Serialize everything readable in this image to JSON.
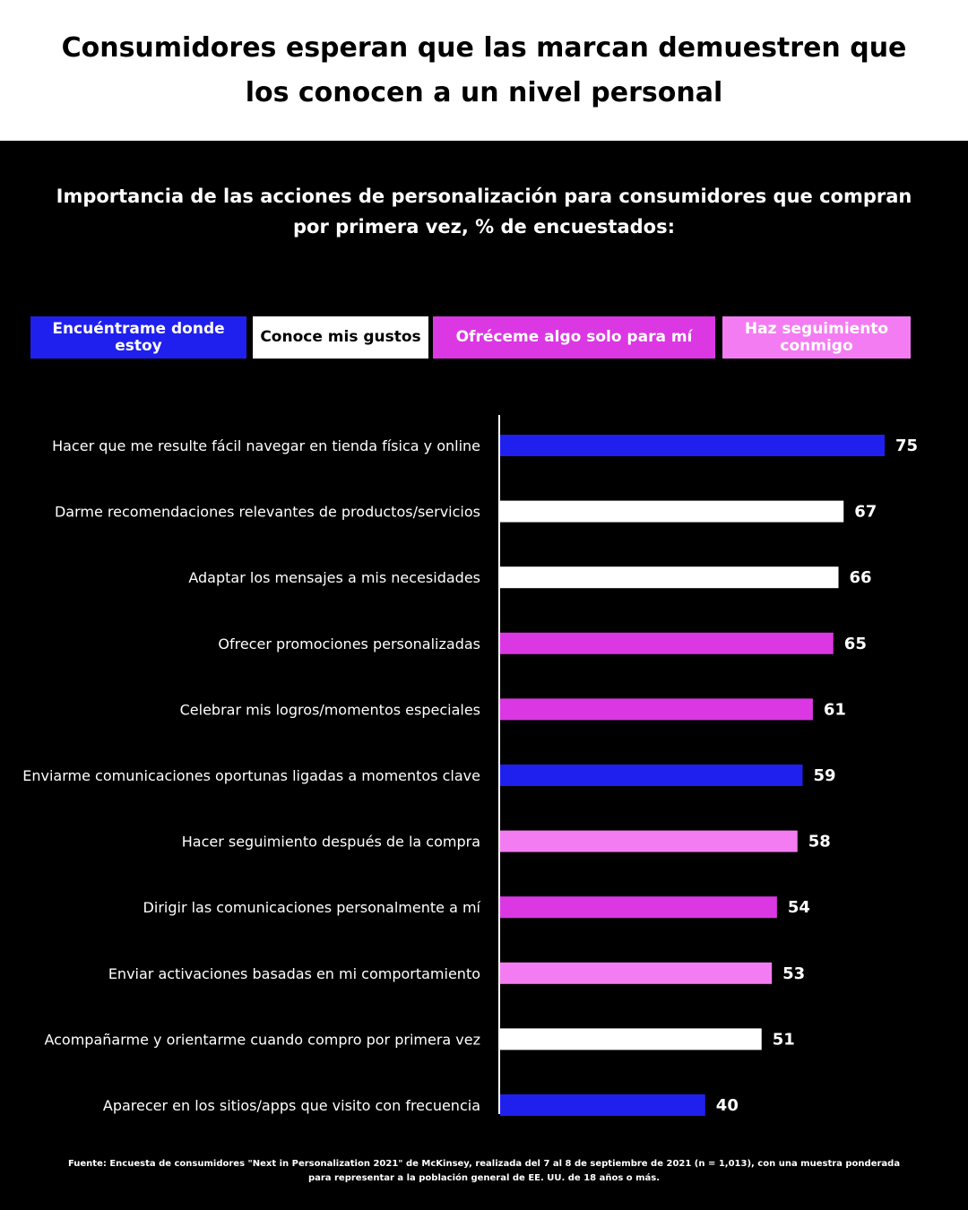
{
  "page": {
    "title": "Consumidores esperan que las marcan demuestren que los conocen a un nivel personal",
    "source": "Fuente: Encuesta de consumidores \"Next in Personalization 2021\" de McKinsey, realizada del 7 al 8 de septiembre de 2021 (n = 1,013), con una muestra ponderada para representar a la población general de EE. UU. de 18 años o más."
  },
  "colors": {
    "blue": "#2020ee",
    "white": "#ffffff",
    "magenta": "#db37e3",
    "pink": "#f47cf2",
    "background": "#000000"
  },
  "chart_data": {
    "type": "bar",
    "orientation": "horizontal",
    "title": "Importancia de las acciones de personalización para consumidores que compran por primera vez, % de encuestados:",
    "legend_position": "top",
    "legend": [
      {
        "label": "Encuéntrame donde estoy",
        "color": "#2020ee",
        "text_color": "#ffffff"
      },
      {
        "label": "Conoce mis gustos",
        "color": "#ffffff",
        "text_color": "#000000"
      },
      {
        "label": "Ofréceme algo solo para mí",
        "color": "#db37e3",
        "text_color": "#ffffff"
      },
      {
        "label": "Haz seguimiento conmigo",
        "color": "#f47cf2",
        "text_color": "#ffffff"
      }
    ],
    "categories": [
      "Hacer que me resulte fácil navegar en tienda física y online",
      "Darme recomendaciones relevantes de productos/servicios",
      "Adaptar los mensajes a mis necesidades",
      "Ofrecer promociones personalizadas",
      "Celebrar mis logros/momentos especiales",
      "Enviarme comunicaciones oportunas ligadas a momentos clave",
      "Hacer seguimiento después de la compra",
      "Dirigir las comunicaciones personalmente a mí",
      "Enviar activaciones basadas en mi comportamiento",
      "Acompañarme y orientarme cuando compro por primera vez",
      "Aparecer en los sitios/apps que visito con frecuencia"
    ],
    "values": [
      75,
      67,
      66,
      65,
      61,
      59,
      58,
      54,
      53,
      51,
      40
    ],
    "groups": [
      "Encuéntrame donde estoy",
      "Conoce mis gustos",
      "Conoce mis gustos",
      "Ofréceme algo solo para mí",
      "Ofréceme algo solo para mí",
      "Encuéntrame donde estoy",
      "Haz seguimiento conmigo",
      "Ofréceme algo solo para mí",
      "Haz seguimiento conmigo",
      "Conoce mis gustos",
      "Encuéntrame donde estoy"
    ],
    "xlim": [
      0,
      75
    ],
    "grid": false,
    "data_labels": true
  }
}
